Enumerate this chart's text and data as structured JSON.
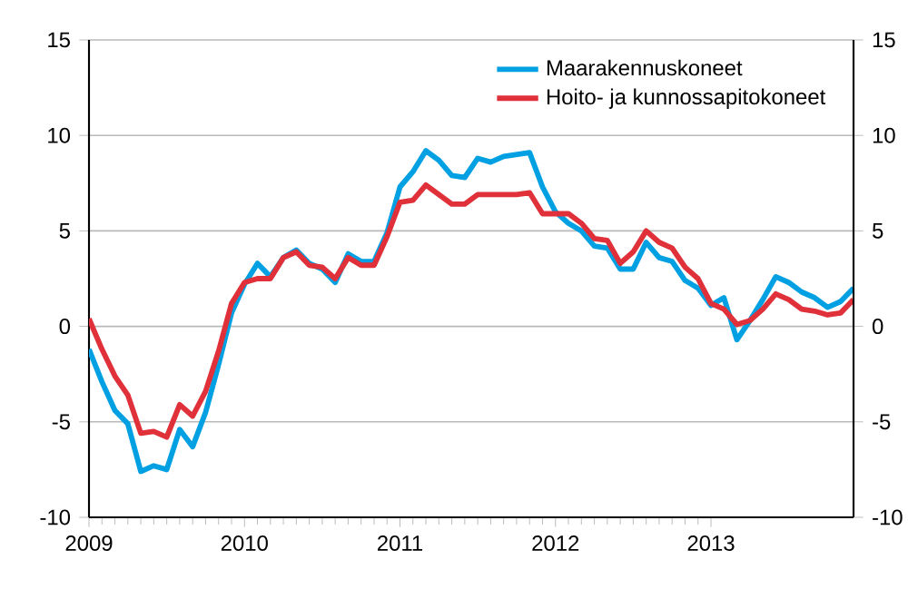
{
  "chart_data": {
    "type": "line",
    "x": [
      "2009-01",
      "2009-02",
      "2009-03",
      "2009-04",
      "2009-05",
      "2009-06",
      "2009-07",
      "2009-08",
      "2009-09",
      "2009-10",
      "2009-11",
      "2009-12",
      "2010-01",
      "2010-02",
      "2010-03",
      "2010-04",
      "2010-05",
      "2010-06",
      "2010-07",
      "2010-08",
      "2010-09",
      "2010-10",
      "2010-11",
      "2010-12",
      "2011-01",
      "2011-02",
      "2011-03",
      "2011-04",
      "2011-05",
      "2011-06",
      "2011-07",
      "2011-08",
      "2011-09",
      "2011-10",
      "2011-11",
      "2011-12",
      "2012-01",
      "2012-02",
      "2012-03",
      "2012-04",
      "2012-05",
      "2012-06",
      "2012-07",
      "2012-08",
      "2012-09",
      "2012-10",
      "2012-11",
      "2012-12",
      "2013-01",
      "2013-02",
      "2013-03",
      "2013-04",
      "2013-05",
      "2013-06",
      "2013-07",
      "2013-08",
      "2013-09",
      "2013-10",
      "2013-11",
      "2013-12"
    ],
    "series": [
      {
        "name": "Maarakennuskoneet",
        "color": "#00a0e3",
        "values": [
          -1.2,
          -2.9,
          -4.4,
          -5.1,
          -7.6,
          -7.3,
          -7.5,
          -5.4,
          -6.3,
          -4.5,
          -2.0,
          0.7,
          2.2,
          3.3,
          2.6,
          3.6,
          4.0,
          3.3,
          3.0,
          2.3,
          3.8,
          3.4,
          3.4,
          4.9,
          7.3,
          8.1,
          9.2,
          8.7,
          7.9,
          7.8,
          8.8,
          8.6,
          8.9,
          9.0,
          9.1,
          7.3,
          6.0,
          5.4,
          5.0,
          4.2,
          4.1,
          3.0,
          3.0,
          4.4,
          3.6,
          3.4,
          2.4,
          2.0,
          1.1,
          1.5,
          -0.7,
          0.3,
          1.4,
          2.6,
          2.3,
          1.8,
          1.5,
          1.0,
          1.3,
          2.0
        ]
      },
      {
        "name": "Hoito- ja kunnossapitokoneet",
        "color": "#e0303a",
        "values": [
          0.4,
          -1.2,
          -2.6,
          -3.6,
          -5.6,
          -5.5,
          -5.8,
          -4.1,
          -4.7,
          -3.4,
          -1.3,
          1.2,
          2.3,
          2.5,
          2.5,
          3.6,
          3.9,
          3.2,
          3.1,
          2.5,
          3.6,
          3.2,
          3.2,
          4.7,
          6.5,
          6.6,
          7.4,
          6.9,
          6.4,
          6.4,
          6.9,
          6.9,
          6.9,
          6.9,
          7.0,
          5.9,
          5.9,
          5.9,
          5.4,
          4.6,
          4.5,
          3.3,
          3.9,
          5.0,
          4.4,
          4.1,
          3.1,
          2.5,
          1.2,
          0.9,
          0.1,
          0.3,
          0.9,
          1.7,
          1.4,
          0.9,
          0.8,
          0.6,
          0.7,
          1.4
        ]
      }
    ],
    "xlim": [
      "2009-01",
      "2013-12"
    ],
    "xticks": [
      "2009",
      "2010",
      "2011",
      "2012",
      "2013"
    ],
    "ylim": [
      -10,
      15
    ],
    "yticks": [
      -10,
      -5,
      0,
      5,
      10,
      15
    ],
    "y2lim": [
      -10,
      15
    ],
    "y2ticks": [
      -10,
      -5,
      0,
      5,
      10,
      15
    ],
    "grid": "y",
    "legend": "top right",
    "line_style": "solid"
  }
}
